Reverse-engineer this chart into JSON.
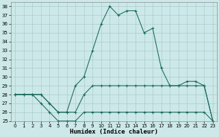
{
  "xlabel": "Humidex (Indice chaleur)",
  "background_color": "#cce8e8",
  "grid_color": "#aacccc",
  "line_color": "#1a6b5a",
  "xlim": [
    -0.5,
    23.5
  ],
  "ylim": [
    25,
    38.5
  ],
  "yticks": [
    25,
    26,
    27,
    28,
    29,
    30,
    31,
    32,
    33,
    34,
    35,
    36,
    37,
    38
  ],
  "xticks": [
    0,
    1,
    2,
    3,
    4,
    5,
    6,
    7,
    8,
    9,
    10,
    11,
    12,
    13,
    14,
    15,
    16,
    17,
    18,
    19,
    20,
    21,
    22,
    23
  ],
  "series": [
    {
      "x": [
        0,
        1,
        2,
        3,
        4,
        5,
        6,
        7,
        8,
        9,
        10,
        11,
        12,
        13,
        14,
        15,
        16,
        17,
        18,
        19,
        20,
        21,
        22,
        23
      ],
      "y": [
        28,
        28,
        28,
        27,
        26,
        25,
        25,
        25,
        26,
        26,
        26,
        26,
        26,
        26,
        26,
        26,
        26,
        26,
        26,
        26,
        26,
        26,
        26,
        25
      ]
    },
    {
      "x": [
        0,
        1,
        2,
        3,
        4,
        5,
        6,
        7,
        8,
        9,
        10,
        11,
        12,
        13,
        14,
        15,
        16,
        17,
        18,
        19,
        20,
        21,
        22,
        23
      ],
      "y": [
        28,
        28,
        28,
        28,
        27,
        26,
        26,
        26,
        28,
        29,
        29,
        29,
        29,
        29,
        29,
        29,
        29,
        29,
        29,
        29,
        29,
        29,
        29,
        25
      ]
    },
    {
      "x": [
        0,
        1,
        2,
        3,
        4,
        5,
        6,
        7,
        8,
        9,
        10,
        11,
        12,
        13,
        14,
        15,
        16,
        17,
        18,
        19,
        20,
        21,
        22,
        23
      ],
      "y": [
        28,
        28,
        28,
        28,
        27,
        26,
        26,
        29,
        30,
        33,
        36,
        38,
        37,
        37.5,
        37.5,
        35,
        35.5,
        31,
        29,
        29,
        29.5,
        29.5,
        29,
        25
      ]
    }
  ]
}
